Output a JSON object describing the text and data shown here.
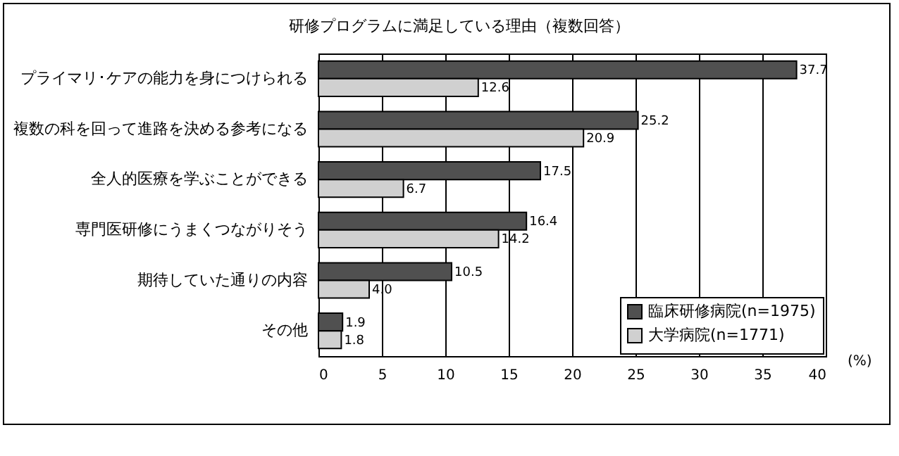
{
  "chart_data": {
    "type": "bar",
    "orientation": "horizontal",
    "title": "研修プログラムに満足している理由（複数回答）",
    "xlabel": "(%)",
    "categories": [
      "プライマリ･ケアの能力を身につけられる",
      "複数の科を回って進路を決める参考になる",
      "全人的医療を学ぶことができる",
      "専門医研修にうまくつながりそう",
      "期待していた通りの内容",
      "その他"
    ],
    "series": [
      {
        "name": "臨床研修病院(n=1975)",
        "color": "#505050",
        "values": [
          37.7,
          25.2,
          17.5,
          16.4,
          10.5,
          1.9
        ],
        "value_labels": [
          "37.7",
          "25.2",
          "17.5",
          "16.4",
          "10.5",
          "1.9"
        ]
      },
      {
        "name": "大学病院(n=1771)",
        "color": "#d0d0d0",
        "values": [
          12.6,
          20.9,
          6.7,
          14.2,
          4.0,
          1.8
        ],
        "value_labels": [
          "12.6",
          "20.9",
          "6.7",
          "14.2",
          "4.0",
          "1.8"
        ]
      }
    ],
    "xlim": [
      0,
      40
    ],
    "xticks": [
      0,
      5,
      10,
      15,
      20,
      25,
      30,
      35,
      40
    ],
    "grid": "x",
    "legend": "bottom right"
  }
}
